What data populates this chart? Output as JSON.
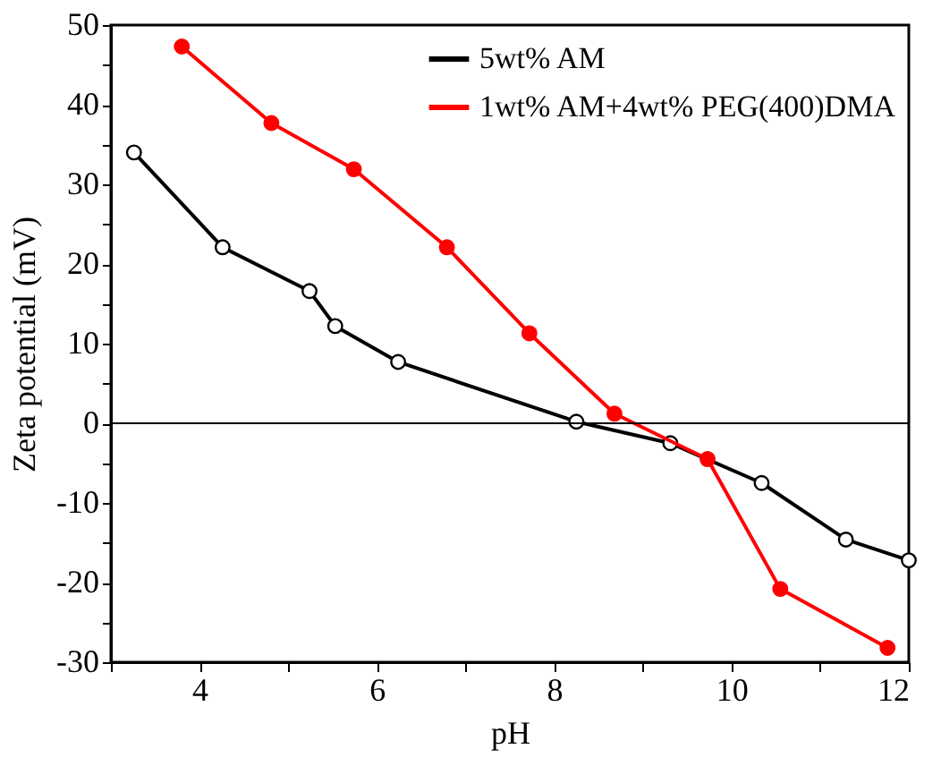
{
  "chart_data": {
    "type": "line",
    "xlabel": "pH",
    "ylabel": "Zeta potential (mV)",
    "series": [
      {
        "name": "5wt% AM",
        "color": "#000000",
        "x": [
          3.26,
          4.26,
          5.24,
          5.53,
          6.24,
          8.25,
          9.31,
          10.34,
          11.29,
          12.0
        ],
        "values": [
          34.0,
          22.1,
          16.6,
          12.2,
          7.7,
          0.2,
          -2.5,
          -7.5,
          -14.6,
          -17.2
        ]
      },
      {
        "name": "1wt% AM+4wt% PEG(400)DMA",
        "color": "#ff0000",
        "x": [
          3.8,
          4.81,
          5.74,
          6.79,
          7.72,
          8.68,
          9.73,
          10.55,
          11.76
        ],
        "values": [
          47.3,
          37.7,
          31.9,
          22.1,
          11.3,
          1.2,
          -4.5,
          -20.8,
          -28.2
        ]
      }
    ],
    "xlim": [
      3,
      12
    ],
    "xticks": [
      {
        "value": 3,
        "label": null
      },
      4,
      {
        "value": 5,
        "label": null
      },
      6,
      {
        "value": 7,
        "label": null
      },
      8,
      {
        "value": 9,
        "label": null
      },
      10,
      {
        "value": 11,
        "label": null
      },
      12
    ],
    "ylim": [
      -30,
      50
    ],
    "yticks": [
      -30,
      {
        "value": -25,
        "label": null
      },
      -20,
      {
        "value": -15,
        "label": null
      },
      -10,
      {
        "value": -5,
        "label": null
      },
      0,
      {
        "value": 5,
        "label": null
      },
      10,
      {
        "value": 15,
        "label": null
      },
      20,
      {
        "value": 25,
        "label": null
      },
      30,
      {
        "value": 35,
        "label": null
      },
      40,
      {
        "value": 45,
        "label": null
      },
      50
    ],
    "ref_lines": [
      {
        "axis": "y",
        "value": 0,
        "color": "#000000"
      }
    ],
    "grid": false,
    "legend": "top right",
    "line_style": "solid",
    "marker": "circle"
  }
}
